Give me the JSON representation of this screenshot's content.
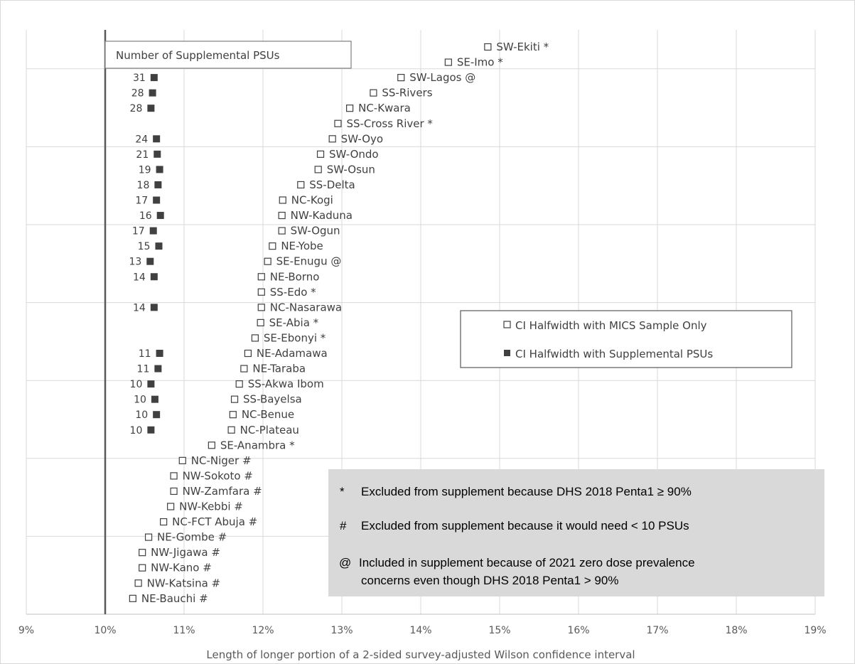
{
  "chart_data": {
    "type": "scatter",
    "xlabel": "Length of longer portion of a 2-sided survey-adjusted Wilson confidence interval",
    "xlim": [
      9,
      19
    ],
    "xticks": [
      "9%",
      "10%",
      "11%",
      "12%",
      "13%",
      "14%",
      "15%",
      "16%",
      "17%",
      "18%",
      "19%"
    ],
    "reference_line_x": 10,
    "grid": true,
    "psu_header": "Number of Supplemental PSUs",
    "legend": {
      "mics": "CI Halfwidth with MICS Sample Only",
      "supp": "CI Halfwidth with Supplemental PSUs"
    },
    "notes": [
      {
        "symbol": "*",
        "text": "Excluded from supplement because DHS 2018 Penta1 ≥ 90%"
      },
      {
        "symbol": "#",
        "text": "Excluded from supplement because it would need < 10 PSUs"
      },
      {
        "symbol": "@",
        "text": "Included in supplement because of 2021 zero dose prevalence",
        "text2": "concerns even though DHS 2018 Penta1 > 90%"
      }
    ],
    "states": [
      {
        "name": "SW-Ekiti *",
        "mics": 14.85,
        "supp": null,
        "psus": null
      },
      {
        "name": "SE-Imo *",
        "mics": 14.35,
        "supp": null,
        "psus": null
      },
      {
        "name": "SW-Lagos @",
        "mics": 13.75,
        "supp": 10.62,
        "psus": "31"
      },
      {
        "name": "SS-Rivers",
        "mics": 13.4,
        "supp": 10.6,
        "psus": "28"
      },
      {
        "name": "NC-Kwara",
        "mics": 13.1,
        "supp": 10.58,
        "psus": "28"
      },
      {
        "name": "SS-Cross River *",
        "mics": 12.95,
        "supp": null,
        "psus": null
      },
      {
        "name": "SW-Oyo",
        "mics": 12.88,
        "supp": 10.65,
        "psus": "24"
      },
      {
        "name": "SW-Ondo",
        "mics": 12.73,
        "supp": 10.66,
        "psus": "21"
      },
      {
        "name": "SW-Osun",
        "mics": 12.7,
        "supp": 10.69,
        "psus": "19"
      },
      {
        "name": "SS-Delta",
        "mics": 12.48,
        "supp": 10.67,
        "psus": "18"
      },
      {
        "name": "NC-Kogi",
        "mics": 12.25,
        "supp": 10.65,
        "psus": "17"
      },
      {
        "name": "NW-Kaduna",
        "mics": 12.24,
        "supp": 10.7,
        "psus": "16"
      },
      {
        "name": "SW-Ogun",
        "mics": 12.24,
        "supp": 10.61,
        "psus": "17"
      },
      {
        "name": "NE-Yobe",
        "mics": 12.12,
        "supp": 10.68,
        "psus": "15"
      },
      {
        "name": "SE-Enugu @",
        "mics": 12.06,
        "supp": 10.57,
        "psus": "13"
      },
      {
        "name": "NE-Borno",
        "mics": 11.98,
        "supp": 10.62,
        "psus": "14"
      },
      {
        "name": "SS-Edo *",
        "mics": 11.98,
        "supp": null,
        "psus": null
      },
      {
        "name": "NC-Nasarawa",
        "mics": 11.98,
        "supp": 10.62,
        "psus": "14"
      },
      {
        "name": "SE-Abia *",
        "mics": 11.97,
        "supp": null,
        "psus": null
      },
      {
        "name": "SE-Ebonyi *",
        "mics": 11.9,
        "supp": null,
        "psus": null
      },
      {
        "name": "NE-Adamawa",
        "mics": 11.81,
        "supp": 10.69,
        "psus": "11"
      },
      {
        "name": "NE-Taraba",
        "mics": 11.76,
        "supp": 10.67,
        "psus": "11"
      },
      {
        "name": "SS-Akwa Ibom",
        "mics": 11.7,
        "supp": 10.58,
        "psus": "10"
      },
      {
        "name": "SS-Bayelsa",
        "mics": 11.64,
        "supp": 10.63,
        "psus": "10"
      },
      {
        "name": "NC-Benue",
        "mics": 11.62,
        "supp": 10.65,
        "psus": "10"
      },
      {
        "name": "NC-Plateau",
        "mics": 11.6,
        "supp": 10.58,
        "psus": "10"
      },
      {
        "name": "SE-Anambra *",
        "mics": 11.35,
        "supp": null,
        "psus": null
      },
      {
        "name": "NC-Niger #",
        "mics": 10.98,
        "supp": null,
        "psus": null
      },
      {
        "name": "NW-Sokoto #",
        "mics": 10.87,
        "supp": null,
        "psus": null
      },
      {
        "name": "NW-Zamfara #",
        "mics": 10.87,
        "supp": null,
        "psus": null
      },
      {
        "name": "NW-Kebbi #",
        "mics": 10.83,
        "supp": null,
        "psus": null
      },
      {
        "name": "NC-FCT Abuja #",
        "mics": 10.74,
        "supp": null,
        "psus": null
      },
      {
        "name": "NE-Gombe #",
        "mics": 10.55,
        "supp": null,
        "psus": null
      },
      {
        "name": "NW-Jigawa #",
        "mics": 10.47,
        "supp": null,
        "psus": null
      },
      {
        "name": "NW-Kano #",
        "mics": 10.47,
        "supp": null,
        "psus": null
      },
      {
        "name": "NW-Katsina #",
        "mics": 10.42,
        "supp": null,
        "psus": null
      },
      {
        "name": "NE-Bauchi #",
        "mics": 10.35,
        "supp": null,
        "psus": null
      }
    ]
  }
}
